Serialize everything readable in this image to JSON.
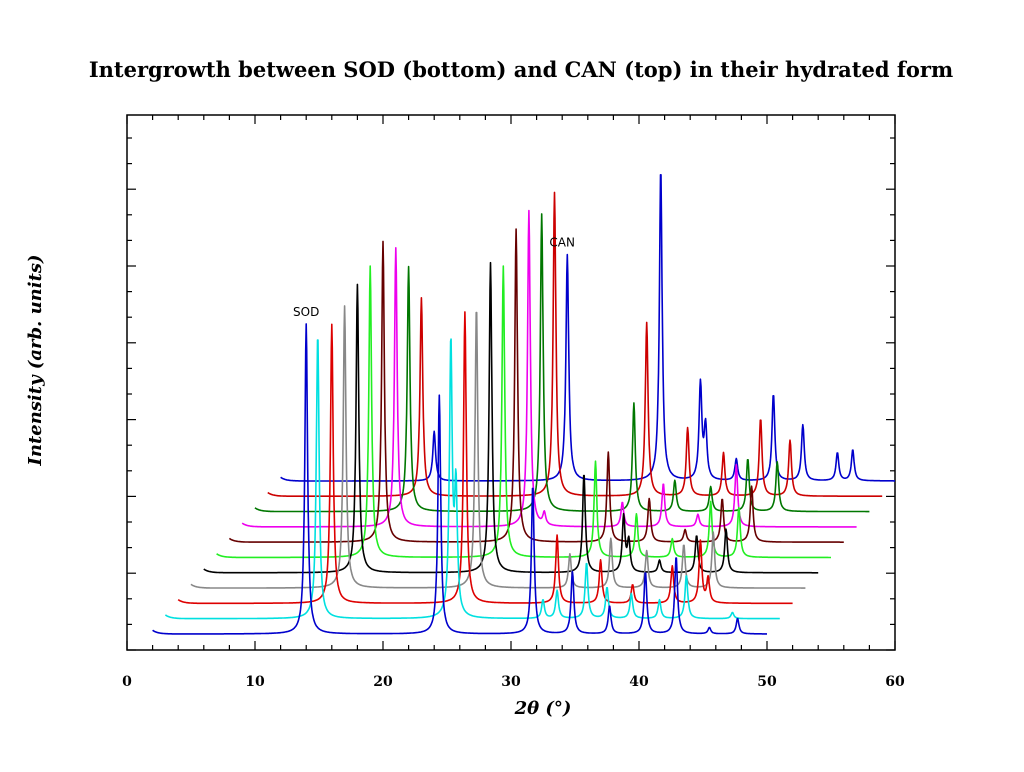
{
  "chart_data": {
    "type": "line",
    "title": "Intergrowth between SOD (bottom) and CAN (top) in their hydrated form",
    "xlabel": "2θ (°)",
    "ylabel": "Intensity (arb. units)",
    "xlim": [
      0,
      60
    ],
    "xticks": [
      0,
      10,
      20,
      30,
      40,
      50,
      60
    ],
    "y_ticks_labeled": false,
    "x_range_per_pattern": [
      2,
      50
    ],
    "pattern_offset_deg": 1.0,
    "grid": false,
    "legend": "none",
    "annotations": [
      {
        "text": "SOD",
        "x": 14.0
      },
      {
        "text": "CAN",
        "x": 24.0
      }
    ],
    "series": [
      {
        "color": "#0000cc",
        "peaks": [
          {
            "x": 14.0,
            "y": 100
          },
          {
            "x": 24.4,
            "y": 77
          },
          {
            "x": 31.7,
            "y": 48
          },
          {
            "x": 34.8,
            "y": 20
          },
          {
            "x": 37.7,
            "y": 9
          },
          {
            "x": 40.5,
            "y": 20
          },
          {
            "x": 42.9,
            "y": 25
          },
          {
            "x": 45.5,
            "y": 2
          },
          {
            "x": 47.7,
            "y": 5
          }
        ]
      },
      {
        "color": "#00e0e0",
        "peaks": [
          {
            "x": 13.9,
            "y": 92
          },
          {
            "x": 24.3,
            "y": 88
          },
          {
            "x": 24.7,
            "y": 40
          },
          {
            "x": 31.5,
            "y": 6
          },
          {
            "x": 32.6,
            "y": 9
          },
          {
            "x": 34.9,
            "y": 18
          },
          {
            "x": 36.5,
            "y": 10
          },
          {
            "x": 38.4,
            "y": 8
          },
          {
            "x": 40.6,
            "y": 6
          },
          {
            "x": 42.7,
            "y": 14
          },
          {
            "x": 46.3,
            "y": 2
          }
        ]
      },
      {
        "color": "#dd0000",
        "peaks": [
          {
            "x": 14.0,
            "y": 90
          },
          {
            "x": 24.4,
            "y": 94
          },
          {
            "x": 31.6,
            "y": 22
          },
          {
            "x": 35.0,
            "y": 14
          },
          {
            "x": 37.5,
            "y": 6
          },
          {
            "x": 40.6,
            "y": 12
          },
          {
            "x": 42.8,
            "y": 20
          },
          {
            "x": 43.4,
            "y": 8
          }
        ]
      },
      {
        "color": "#888888",
        "peaks": [
          {
            "x": 14.0,
            "y": 91
          },
          {
            "x": 24.3,
            "y": 91
          },
          {
            "x": 31.6,
            "y": 11
          },
          {
            "x": 34.8,
            "y": 16
          },
          {
            "x": 37.6,
            "y": 12
          },
          {
            "x": 40.5,
            "y": 14
          },
          {
            "x": 42.8,
            "y": 18
          }
        ]
      },
      {
        "color": "#000000",
        "peaks": [
          {
            "x": 14.0,
            "y": 93
          },
          {
            "x": 24.4,
            "y": 100
          },
          {
            "x": 31.7,
            "y": 32
          },
          {
            "x": 34.8,
            "y": 18
          },
          {
            "x": 35.2,
            "y": 10
          },
          {
            "x": 37.6,
            "y": 4
          },
          {
            "x": 40.5,
            "y": 12
          },
          {
            "x": 42.8,
            "y": 14
          }
        ]
      },
      {
        "color": "#22ee22",
        "peaks": [
          {
            "x": 14.0,
            "y": 94
          },
          {
            "x": 24.4,
            "y": 94
          },
          {
            "x": 31.6,
            "y": 31
          },
          {
            "x": 34.8,
            "y": 14
          },
          {
            "x": 37.6,
            "y": 6
          },
          {
            "x": 40.6,
            "y": 18
          },
          {
            "x": 42.8,
            "y": 16
          }
        ]
      },
      {
        "color": "#660000",
        "peaks": [
          {
            "x": 14.0,
            "y": 97
          },
          {
            "x": 24.4,
            "y": 101
          },
          {
            "x": 31.6,
            "y": 29
          },
          {
            "x": 34.8,
            "y": 14
          },
          {
            "x": 37.6,
            "y": 4
          },
          {
            "x": 40.5,
            "y": 14
          },
          {
            "x": 42.8,
            "y": 18
          }
        ]
      },
      {
        "color": "#ee00ee",
        "peaks": [
          {
            "x": 14.0,
            "y": 90
          },
          {
            "x": 24.4,
            "y": 102
          },
          {
            "x": 25.6,
            "y": 4
          },
          {
            "x": 31.7,
            "y": 8
          },
          {
            "x": 34.9,
            "y": 14
          },
          {
            "x": 37.6,
            "y": 4
          },
          {
            "x": 40.6,
            "y": 20
          }
        ]
      },
      {
        "color": "#007700",
        "peaks": [
          {
            "x": 14.0,
            "y": 79
          },
          {
            "x": 24.4,
            "y": 96
          },
          {
            "x": 31.6,
            "y": 35
          },
          {
            "x": 34.8,
            "y": 10
          },
          {
            "x": 37.6,
            "y": 8
          },
          {
            "x": 40.5,
            "y": 17
          },
          {
            "x": 42.8,
            "y": 16
          }
        ]
      },
      {
        "color": "#cc0000",
        "peaks": [
          {
            "x": 14.0,
            "y": 64
          },
          {
            "x": 24.4,
            "y": 98
          },
          {
            "x": 31.6,
            "y": 56
          },
          {
            "x": 34.8,
            "y": 22
          },
          {
            "x": 37.6,
            "y": 14
          },
          {
            "x": 40.5,
            "y": 25
          },
          {
            "x": 42.8,
            "y": 18
          }
        ]
      },
      {
        "color": "#0000cc",
        "peaks": [
          {
            "x": 14.0,
            "y": 16
          },
          {
            "x": 24.4,
            "y": 73
          },
          {
            "x": 31.7,
            "y": 101
          },
          {
            "x": 34.8,
            "y": 31
          },
          {
            "x": 35.2,
            "y": 17
          },
          {
            "x": 37.6,
            "y": 7
          },
          {
            "x": 40.5,
            "y": 28
          },
          {
            "x": 42.8,
            "y": 18
          },
          {
            "x": 45.5,
            "y": 9
          },
          {
            "x": 46.7,
            "y": 10
          }
        ]
      }
    ]
  }
}
